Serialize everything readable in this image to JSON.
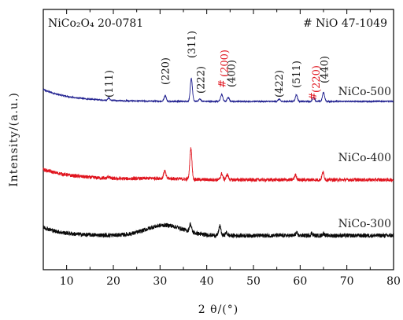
{
  "chart_data": {
    "type": "line",
    "xlabel": "2 θ/(°)",
    "ylabel": "Intensity/(a.u.)",
    "xlim": [
      5,
      80
    ],
    "x_ticks": [
      "10",
      "20",
      "30",
      "40",
      "50",
      "60",
      "70",
      "80"
    ],
    "references": {
      "left": "NiCo₂O₄ 20-0781",
      "right": "# NiO 47-1049"
    },
    "series": [
      {
        "name": "NiCo-500",
        "color": "#1f1f8f",
        "baseline": 0.3,
        "start_rise": 1.5,
        "decay": 6,
        "noise": 0.08,
        "hump": {
          "center": 30,
          "height": 0,
          "width": 5
        },
        "peaks": [
          {
            "x": 19.0,
            "h": 0.3
          },
          {
            "x": 31.1,
            "h": 0.75
          },
          {
            "x": 36.7,
            "h": 2.9
          },
          {
            "x": 38.5,
            "h": 0.3
          },
          {
            "x": 43.2,
            "h": 0.9
          },
          {
            "x": 44.6,
            "h": 0.5
          },
          {
            "x": 55.5,
            "h": 0.3
          },
          {
            "x": 59.2,
            "h": 0.85
          },
          {
            "x": 62.9,
            "h": 0.55
          },
          {
            "x": 65.0,
            "h": 1.15
          }
        ]
      },
      {
        "name": "NiCo-400",
        "color": "#e0141e",
        "baseline": 0.3,
        "start_rise": 1.2,
        "decay": 7,
        "noise": 0.2,
        "hump": {
          "center": 30,
          "height": 0.15,
          "width": 6
        },
        "peaks": [
          {
            "x": 19.0,
            "h": 0.2
          },
          {
            "x": 31.0,
            "h": 0.85
          },
          {
            "x": 36.6,
            "h": 3.6
          },
          {
            "x": 43.2,
            "h": 0.7
          },
          {
            "x": 44.4,
            "h": 0.6
          },
          {
            "x": 59.0,
            "h": 0.55
          },
          {
            "x": 64.9,
            "h": 0.85
          }
        ]
      },
      {
        "name": "NiCo-300",
        "color": "#0a0a0a",
        "baseline": 0.45,
        "start_rise": 0.9,
        "decay": 4,
        "noise": 0.22,
        "hump": {
          "center": 31,
          "height": 1.1,
          "width": 5.5
        },
        "peaks": [
          {
            "x": 36.5,
            "h": 0.8
          },
          {
            "x": 42.8,
            "h": 1.0
          },
          {
            "x": 44.2,
            "h": 0.3
          },
          {
            "x": 59.2,
            "h": 0.25
          },
          {
            "x": 62.5,
            "h": 0.25
          },
          {
            "x": 65.0,
            "h": 0.2
          }
        ]
      }
    ],
    "peak_labels": [
      {
        "text": "(111)",
        "x": 19.0,
        "color": "#111111"
      },
      {
        "text": "(220)",
        "x": 31.0,
        "color": "#111111"
      },
      {
        "text": "(311)",
        "x": 36.7,
        "color": "#111111"
      },
      {
        "text": "(222)",
        "x": 38.6,
        "color": "#111111"
      },
      {
        "text": "#",
        "x": 43.2,
        "color": "#e0141e"
      },
      {
        "text": "(200)",
        "x": 43.7,
        "color": "#e0141e"
      },
      {
        "text": "(400)",
        "x": 45.2,
        "color": "#111111"
      },
      {
        "text": "(422)",
        "x": 55.4,
        "color": "#111111"
      },
      {
        "text": "(511)",
        "x": 59.1,
        "color": "#111111"
      },
      {
        "text": "#",
        "x": 62.6,
        "color": "#e0141e"
      },
      {
        "text": "(220)",
        "x": 63.3,
        "color": "#e0141e"
      },
      {
        "text": "(440)",
        "x": 65.1,
        "color": "#111111"
      }
    ],
    "grid": false,
    "legend": "none"
  }
}
